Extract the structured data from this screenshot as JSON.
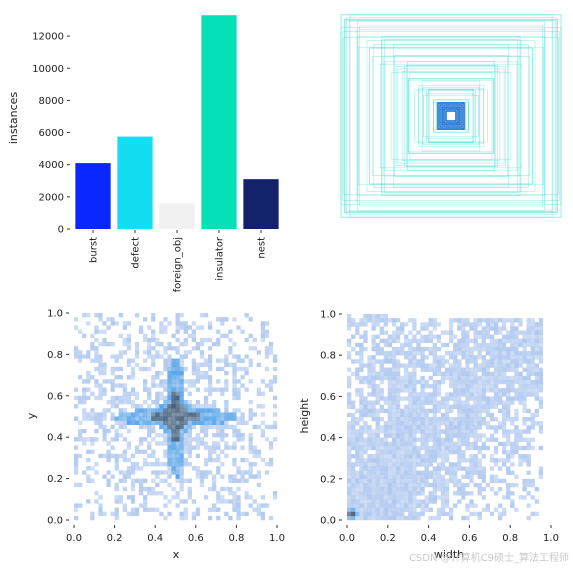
{
  "chart_data": [
    {
      "type": "bar",
      "panel": "top-left",
      "categories": [
        "burst",
        "defect",
        "foreign_obj",
        "insulator",
        "nest"
      ],
      "values": [
        4100,
        5750,
        1600,
        13300,
        3100
      ],
      "colors": [
        "#0b27ff",
        "#13ddf0",
        "#f1f1f1",
        "#05e0b6",
        "#13226b"
      ],
      "ylabel": "instances",
      "xlabel": "",
      "ylim": [
        0,
        13500
      ],
      "yticks": [
        0,
        2000,
        4000,
        6000,
        8000,
        10000,
        12000
      ],
      "grid": false
    },
    {
      "type": "scatter",
      "panel": "top-right",
      "description_free": true,
      "box_centers": [
        0.5,
        0.5
      ],
      "box_sizes": [
        0.08,
        0.15,
        0.22,
        0.3,
        0.38,
        0.45,
        0.52,
        0.6,
        0.68,
        0.75,
        0.82,
        0.9,
        0.96,
        1.0
      ],
      "color": "#2ad6c8"
    },
    {
      "type": "heatmap",
      "panel": "bottom-left",
      "xlabel": "x",
      "ylabel": "y",
      "xlim": [
        0.0,
        1.0
      ],
      "ylim": [
        0.0,
        1.0
      ],
      "xticks": [
        "0.0",
        "0.2",
        "0.4",
        "0.6",
        "0.8",
        "1.0"
      ],
      "yticks": [
        "0.0",
        "0.2",
        "0.4",
        "0.6",
        "0.8",
        "1.0"
      ],
      "peak": [
        0.5,
        0.5
      ],
      "colors": [
        "#aac4ee",
        "#4a9de6",
        "#2f4f6f"
      ]
    },
    {
      "type": "heatmap",
      "panel": "bottom-right",
      "xlabel": "width",
      "ylabel": "height",
      "xlim": [
        0.0,
        1.0
      ],
      "ylim": [
        0.0,
        1.0
      ],
      "xticks": [
        "0.0",
        "0.2",
        "0.4",
        "0.6",
        "0.8",
        "1.0"
      ],
      "yticks": [
        "0.0",
        "0.2",
        "0.4",
        "0.6",
        "0.8",
        "1.0"
      ],
      "peak": [
        0.03,
        0.05
      ],
      "colors": [
        "#aac4ee",
        "#4a9de6",
        "#2f4f6f"
      ]
    }
  ],
  "watermark": "CSDN @计算机C9硕士_算法工程师"
}
